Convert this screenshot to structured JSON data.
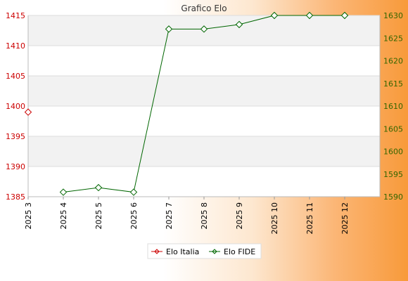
{
  "chart_data": {
    "type": "line",
    "title": "Grafico Elo",
    "categories": [
      "2025 3",
      "2025 4",
      "2025 5",
      "2025 6",
      "2025 7",
      "2025 8",
      "2025 9",
      "2025 10",
      "2025 11",
      "2025 12"
    ],
    "left_axis": {
      "min": 1385,
      "max": 1415,
      "ticks": [
        1385,
        1390,
        1395,
        1400,
        1405,
        1410,
        1415
      ],
      "color": "#cc0000"
    },
    "right_axis": {
      "min": 1590,
      "max": 1630,
      "ticks": [
        1590,
        1595,
        1600,
        1605,
        1610,
        1615,
        1620,
        1625,
        1630
      ],
      "color": "#336600"
    },
    "series": [
      {
        "name": "Elo Italia",
        "axis": "left",
        "color": "#cc0000",
        "values": [
          1399,
          null,
          null,
          null,
          null,
          null,
          null,
          null,
          null,
          null
        ]
      },
      {
        "name": "Elo FIDE",
        "axis": "right",
        "color": "#006600",
        "values": [
          null,
          1591,
          1592,
          1591,
          1627,
          1627,
          1628,
          1630,
          1630,
          1630
        ]
      }
    ],
    "grid": true,
    "legend_position": "bottom-center"
  },
  "legend": {
    "items": [
      {
        "label": "Elo Italia",
        "color": "#cc0000"
      },
      {
        "label": "Elo FIDE",
        "color": "#006600"
      }
    ]
  }
}
